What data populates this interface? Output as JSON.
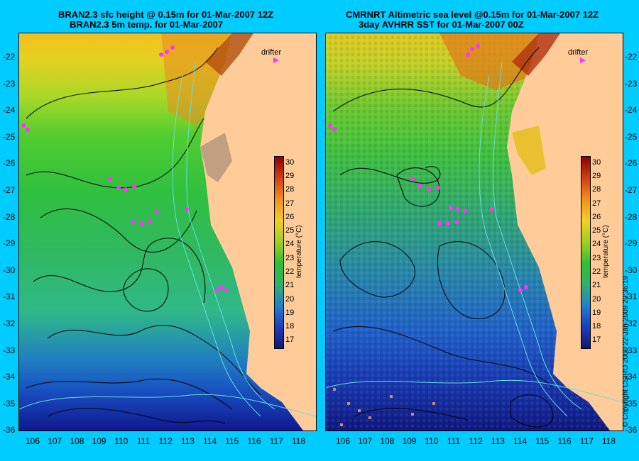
{
  "left_panel": {
    "title_line1": "BRAN2.3 sfc height @ 0.15m for 01-Mar-2007 12Z",
    "title_line2": "BRAN2.3 5m temp. for 01-Mar-2007",
    "drifter_label": "drifter",
    "colorbar_label": "temperature (°C)"
  },
  "right_panel": {
    "title_line1": "CMRNRT Altimetric sea level  @0.15m  for 01-Mar-2007 12Z",
    "title_line2": "3day AVHRR SST for 01-Mar-2007 00Z",
    "drifter_label": "drifter",
    "colorbar_label": "temperature (°C)"
  },
  "copyright": "© Copyright CSIRO 2009   22-Jan-2009 20:36:19",
  "axes": {
    "lat_ticks": [
      "-22",
      "-23",
      "-24",
      "-25",
      "-26",
      "-27",
      "-28",
      "-29",
      "-30",
      "-31",
      "-32",
      "-33",
      "-34",
      "-35",
      "-36"
    ],
    "lon_ticks": [
      "106",
      "107",
      "108",
      "109",
      "110",
      "111",
      "112",
      "113",
      "114",
      "115",
      "116",
      "117",
      "118"
    ]
  },
  "colorbar": {
    "ticks": [
      "30",
      "29",
      "28",
      "27",
      "26",
      "25",
      "24",
      "23",
      "22",
      "21",
      "20",
      "19",
      "18",
      "17"
    ],
    "range": [
      16.5,
      30.5
    ]
  },
  "colors": {
    "background": "#00ccff",
    "land": "#ffcc99",
    "drifter": "#ff33ff",
    "contour": "#000000",
    "isobath": "#66dddd"
  }
}
